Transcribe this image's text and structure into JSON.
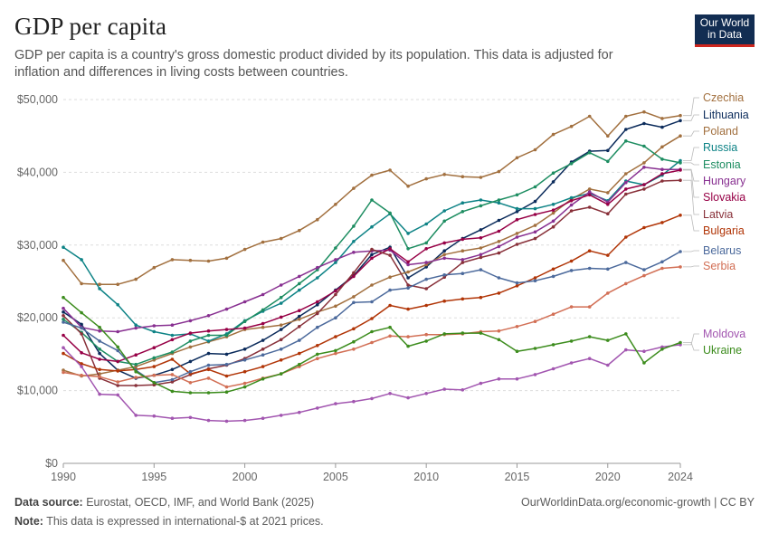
{
  "header": {
    "title": "GDP per capita",
    "subtitle": "GDP per capita is a country's gross domestic product divided by its population. This data is adjusted for inflation and differences in living costs between countries.",
    "logo_line1": "Our World",
    "logo_line2": "in Data"
  },
  "footer": {
    "source_label": "Data source:",
    "source_text": " Eurostat, OECD, IMF, and World Bank (2025)",
    "note_label": "Note:",
    "note_text": " This data is expressed in international-$ at 2021 prices.",
    "url": "OurWorldinData.org/economic-growth | CC BY"
  },
  "chart_data": {
    "type": "line",
    "title": "GDP per capita",
    "xlabel": "",
    "ylabel": "",
    "xlim": [
      1990,
      2024
    ],
    "ylim": [
      0,
      50000
    ],
    "y_ticks": [
      0,
      10000,
      20000,
      30000,
      40000,
      50000
    ],
    "y_tick_labels": [
      "$0",
      "$10,000",
      "$20,000",
      "$30,000",
      "$40,000",
      "$50,000"
    ],
    "x_ticks": [
      1990,
      1995,
      2000,
      2005,
      2010,
      2015,
      2020,
      2024
    ],
    "x_tick_labels": [
      "1990",
      "1995",
      "2000",
      "2005",
      "2010",
      "2015",
      "2020",
      "2024"
    ],
    "grid": "horizontal dashed",
    "legend": "right-side labels",
    "series": [
      {
        "name": "Czechia",
        "color": "#a2703f",
        "x_start": 1990,
        "values": [
          27900,
          24700,
          24600,
          24600,
          25300,
          26900,
          28000,
          27900,
          27800,
          28200,
          29400,
          30400,
          30900,
          32000,
          33500,
          35600,
          37800,
          39600,
          40300,
          38100,
          39100,
          39700,
          39400,
          39300,
          40100,
          42000,
          43100,
          45200,
          46300,
          47700,
          45000,
          47700,
          48300,
          47400,
          47800
        ]
      },
      {
        "name": "Lithuania",
        "color": "#0b2b5b",
        "x_start": 1990,
        "values": [
          20800,
          19100,
          15100,
          12800,
          11700,
          12100,
          12900,
          14000,
          15100,
          15000,
          15700,
          16900,
          18400,
          20200,
          21800,
          23800,
          25800,
          28700,
          29700,
          25500,
          27000,
          29200,
          30900,
          32100,
          33400,
          34600,
          36000,
          38700,
          41400,
          42900,
          43000,
          45900,
          46700,
          46200,
          47100
        ]
      },
      {
        "name": "Poland",
        "color": "#a2703f",
        "x_start": 1990,
        "values": [
          12800,
          12000,
          12300,
          12800,
          13300,
          14200,
          15100,
          16000,
          16700,
          17400,
          18400,
          18700,
          19000,
          19800,
          20800,
          21600,
          22900,
          24500,
          25600,
          26300,
          27300,
          28700,
          29200,
          29600,
          30500,
          31600,
          32700,
          34400,
          36300,
          37700,
          37200,
          39800,
          41300,
          43500,
          45000
        ]
      },
      {
        "name": "Russia",
        "color": "#0e8386",
        "x_start": 1990,
        "values": [
          29700,
          28000,
          24000,
          21800,
          19000,
          18100,
          17600,
          17800,
          16800,
          17800,
          19600,
          20900,
          22000,
          23800,
          25500,
          27600,
          30500,
          32500,
          34300,
          31600,
          32900,
          34700,
          35800,
          36200,
          35800,
          35000,
          35000,
          35600,
          36500,
          37100,
          36100,
          38800,
          38300,
          39600,
          41600
        ]
      },
      {
        "name": "Estonia",
        "color": "#1d8d61",
        "x_start": 1990,
        "values": [
          19800,
          18000,
          15700,
          14000,
          13600,
          14500,
          15300,
          16800,
          17600,
          17600,
          19500,
          21100,
          22800,
          24700,
          26600,
          29600,
          32600,
          36200,
          34400,
          29500,
          30300,
          33300,
          34600,
          35400,
          36200,
          36900,
          38000,
          39900,
          41200,
          42700,
          41500,
          44300,
          43600,
          41800,
          41300
        ]
      },
      {
        "name": "Hungary",
        "color": "#883091",
        "x_start": 1990,
        "values": [
          21300,
          18700,
          18200,
          18100,
          18600,
          18900,
          19000,
          19600,
          20300,
          21200,
          22200,
          23200,
          24500,
          25700,
          26900,
          28000,
          29000,
          29200,
          29300,
          27300,
          27600,
          28200,
          28000,
          28700,
          29800,
          31100,
          31800,
          33300,
          35500,
          37300,
          35900,
          38600,
          40700,
          40400,
          40400
        ]
      },
      {
        "name": "Slovakia",
        "color": "#970046",
        "x_start": 1990,
        "values": [
          17600,
          15200,
          14300,
          14000,
          14900,
          15900,
          17000,
          17900,
          18200,
          18400,
          18600,
          19200,
          20100,
          21000,
          22200,
          23700,
          25700,
          28200,
          29500,
          27700,
          29500,
          30300,
          30800,
          31000,
          31900,
          33500,
          34200,
          34800,
          36100,
          36900,
          35600,
          37700,
          38300,
          39800,
          40300
        ]
      },
      {
        "name": "Latvia",
        "color": "#883039",
        "x_start": 1990,
        "values": [
          20300,
          17800,
          11700,
          10700,
          10700,
          10800,
          11200,
          12200,
          13000,
          13500,
          14400,
          15700,
          17000,
          18800,
          20600,
          23200,
          26200,
          29400,
          28600,
          24500,
          24000,
          25600,
          27600,
          28300,
          28900,
          30100,
          30900,
          32500,
          34700,
          35200,
          34300,
          37000,
          37700,
          38800,
          38900
        ]
      },
      {
        "name": "Bulgaria",
        "color": "#b13507",
        "x_start": 1990,
        "values": [
          15100,
          13700,
          12900,
          12700,
          12900,
          13300,
          14300,
          12300,
          12900,
          12000,
          12600,
          13300,
          14200,
          15100,
          16200,
          17400,
          18500,
          19900,
          21700,
          21200,
          21700,
          22300,
          22600,
          22800,
          23400,
          24400,
          25500,
          26700,
          27800,
          29200,
          28600,
          31100,
          32400,
          33100,
          34100
        ]
      },
      {
        "name": "Belarus",
        "color": "#4c6a9c",
        "x_start": 1990,
        "values": [
          19400,
          18600,
          16800,
          15500,
          12800,
          11100,
          11500,
          12600,
          13500,
          13600,
          14200,
          14900,
          15700,
          16900,
          18700,
          20000,
          22100,
          22200,
          23800,
          24100,
          25300,
          25900,
          26100,
          26600,
          25500,
          24800,
          25100,
          25700,
          26500,
          26800,
          26700,
          27600,
          26600,
          27700,
          29100
        ]
      },
      {
        "name": "Serbia",
        "color": "#d26f55",
        "x_start": 1990,
        "values": [
          12500,
          12100,
          11900,
          11200,
          11800,
          12100,
          12200,
          11100,
          11700,
          10500,
          11000,
          11700,
          12300,
          13300,
          14400,
          15100,
          15700,
          16600,
          17500,
          17400,
          17700,
          17700,
          17800,
          18100,
          18200,
          18800,
          19500,
          20500,
          21500,
          21500,
          23400,
          24700,
          25800,
          26800,
          27000
        ]
      },
      {
        "name": "Moldova",
        "color": "#a256b0",
        "x_start": 1990,
        "values": [
          15900,
          13300,
          9500,
          9400,
          6600,
          6500,
          6200,
          6300,
          5900,
          5800,
          5900,
          6200,
          6600,
          7000,
          7600,
          8200,
          8500,
          8900,
          9600,
          9000,
          9600,
          10200,
          10100,
          11000,
          11600,
          11600,
          12200,
          13000,
          13800,
          14400,
          13500,
          15600,
          15400,
          16000,
          16300
        ]
      },
      {
        "name": "Ukraine",
        "color": "#3c8c1d",
        "x_start": 1990,
        "values": [
          22800,
          20700,
          18700,
          16000,
          12600,
          11100,
          9900,
          9700,
          9700,
          9800,
          10500,
          11600,
          12300,
          13600,
          15000,
          15500,
          16700,
          18100,
          18700,
          16100,
          16800,
          17800,
          17900,
          17900,
          17000,
          15400,
          15800,
          16300,
          16800,
          17400,
          16900,
          17800,
          13800,
          15700,
          16600
        ]
      }
    ],
    "label_positions_note": "labels in right-side legend, order top to bottom",
    "legend_labels": [
      "Czechia",
      "Lithuania",
      "Poland",
      "Russia",
      "Estonia",
      "Hungary",
      "Slovakia",
      "Latvia",
      "Bulgaria",
      "Belarus",
      "Serbia",
      "Moldova",
      "Ukraine"
    ]
  }
}
